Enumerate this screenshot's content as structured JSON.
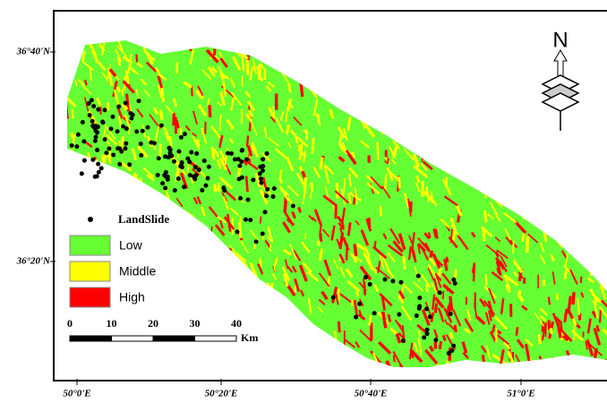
{
  "axes": {
    "left": [
      "36°40'N",
      "36°20'N"
    ],
    "bottom": [
      "50°0'E",
      "50°20'E",
      "50°40'E",
      "51°0'E"
    ]
  },
  "legend": {
    "points": "LandSlide",
    "classes": [
      {
        "label": "Low",
        "color": "#66ff33"
      },
      {
        "label": "Middle",
        "color": "#ffff00"
      },
      {
        "label": "High",
        "color": "#ff0000"
      }
    ]
  },
  "scale": {
    "ticks": [
      0,
      10,
      20,
      30,
      40
    ],
    "unit": "Km"
  },
  "north": "N"
}
